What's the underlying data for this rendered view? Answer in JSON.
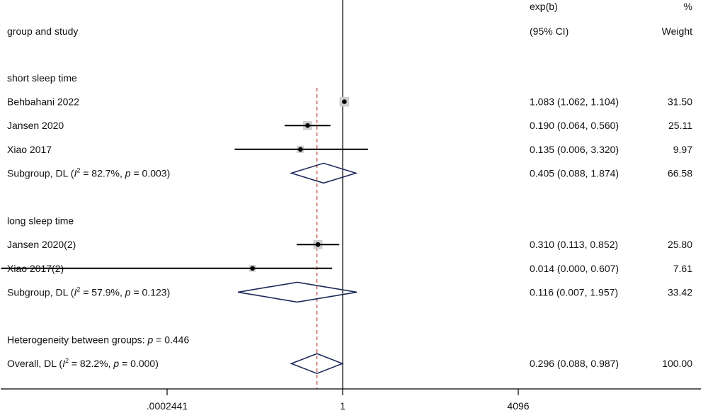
{
  "chart_data": {
    "type": "forest",
    "scale": "log",
    "header": {
      "left": "group and study",
      "effect_line1": "exp(b)",
      "effect_line2": "(95% CI)",
      "weight_line1": "%",
      "weight_line2": "Weight"
    },
    "null_value": 1,
    "overall_estimate": 0.296,
    "xticks": [
      {
        "value": 0.0002441,
        "label": ".0002441"
      },
      {
        "value": 1,
        "label": "1"
      },
      {
        "value": 4096,
        "label": "4096"
      }
    ],
    "rows": [
      {
        "kind": "group",
        "label": "short sleep time"
      },
      {
        "kind": "study",
        "label": "Behbahani 2022",
        "est": 1.083,
        "lo": 1.062,
        "hi": 1.104,
        "ci": "1.083 (1.062, 1.104)",
        "weight": "31.50",
        "w": 31.5
      },
      {
        "kind": "study",
        "label": "Jansen 2020",
        "est": 0.19,
        "lo": 0.064,
        "hi": 0.56,
        "ci": "0.190 (0.064, 0.560)",
        "weight": "25.11",
        "w": 25.11
      },
      {
        "kind": "study",
        "label": "Xiao 2017",
        "est": 0.135,
        "lo": 0.006,
        "hi": 3.32,
        "ci": "0.135 (0.006, 3.320)",
        "weight": "9.97",
        "w": 9.97
      },
      {
        "kind": "subgroup",
        "label_prefix": "Subgroup, DL (",
        "i2_sym": "I",
        "i2_sup": "2",
        "i2_text": " = 82.7%, ",
        "p_sym": "p",
        "p_text": " = 0.003)",
        "est": 0.405,
        "lo": 0.088,
        "hi": 1.874,
        "ci": "0.405 (0.088, 1.874)",
        "weight": "66.58"
      },
      {
        "kind": "blank"
      },
      {
        "kind": "group",
        "label": "long sleep time"
      },
      {
        "kind": "study",
        "label": "Jansen 2020(2)",
        "est": 0.31,
        "lo": 0.113,
        "hi": 0.852,
        "ci": "0.310 (0.113, 0.852)",
        "weight": "25.80",
        "w": 25.8
      },
      {
        "kind": "study",
        "label": "Xiao 2017(2)",
        "est": 0.014,
        "lo": 0.0,
        "hi": 0.607,
        "ci": "0.014 (0.000, 0.607)",
        "weight": "7.61",
        "w": 7.61
      },
      {
        "kind": "subgroup",
        "label_prefix": "Subgroup, DL (",
        "i2_sym": "I",
        "i2_sup": "2",
        "i2_text": " = 57.9%, ",
        "p_sym": "p",
        "p_text": " = 0.123)",
        "est": 0.116,
        "lo": 0.007,
        "hi": 1.957,
        "ci": "0.116 (0.007, 1.957)",
        "weight": "33.42"
      },
      {
        "kind": "blank"
      },
      {
        "kind": "het",
        "label_prefix": "Heterogeneity between groups: ",
        "p_sym": "p",
        "p_text": " = 0.446"
      },
      {
        "kind": "overall",
        "label_prefix": "Overall, DL (",
        "i2_sym": "I",
        "i2_sup": "2",
        "i2_text": " = 82.2%, ",
        "p_sym": "p",
        "p_text": " = 0.000)",
        "est": 0.296,
        "lo": 0.088,
        "hi": 0.987,
        "ci": "0.296 (0.088, 0.987)",
        "weight": "100.00"
      }
    ]
  }
}
